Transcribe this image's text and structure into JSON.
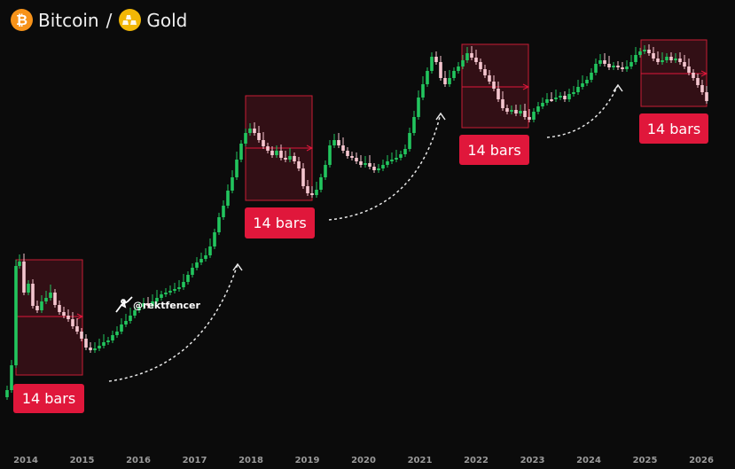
{
  "header": {
    "base": "Bitcoin",
    "separator": "/",
    "quote": "Gold",
    "base_icon": "bitcoin-icon",
    "quote_icon": "gold-bars-icon"
  },
  "watermark": "@rektfencer",
  "colors": {
    "background": "#0b0b0b",
    "up": "#22c55e",
    "down": "#f5c6cf",
    "box_fill": "#3a1117",
    "box_stroke": "#c81e35",
    "label_bg": "#e0173b"
  },
  "chart_data": {
    "type": "candlestick",
    "x_ticks": [
      "2014",
      "2015",
      "2016",
      "2017",
      "2018",
      "2019",
      "2020",
      "2021",
      "2022",
      "2023",
      "2024",
      "2025",
      "2026"
    ],
    "annotations": [
      {
        "label": "14 bars",
        "start": "2014.0",
        "end": "2015.0"
      },
      {
        "label": "14 bars",
        "start": "2017.9",
        "end": "2019.0"
      },
      {
        "label": "14 bars",
        "start": "2021.8",
        "end": "2022.9"
      },
      {
        "label": "14 bars",
        "start": "2024.9",
        "end": "2026.0"
      }
    ],
    "grid": false,
    "legend": "none"
  }
}
